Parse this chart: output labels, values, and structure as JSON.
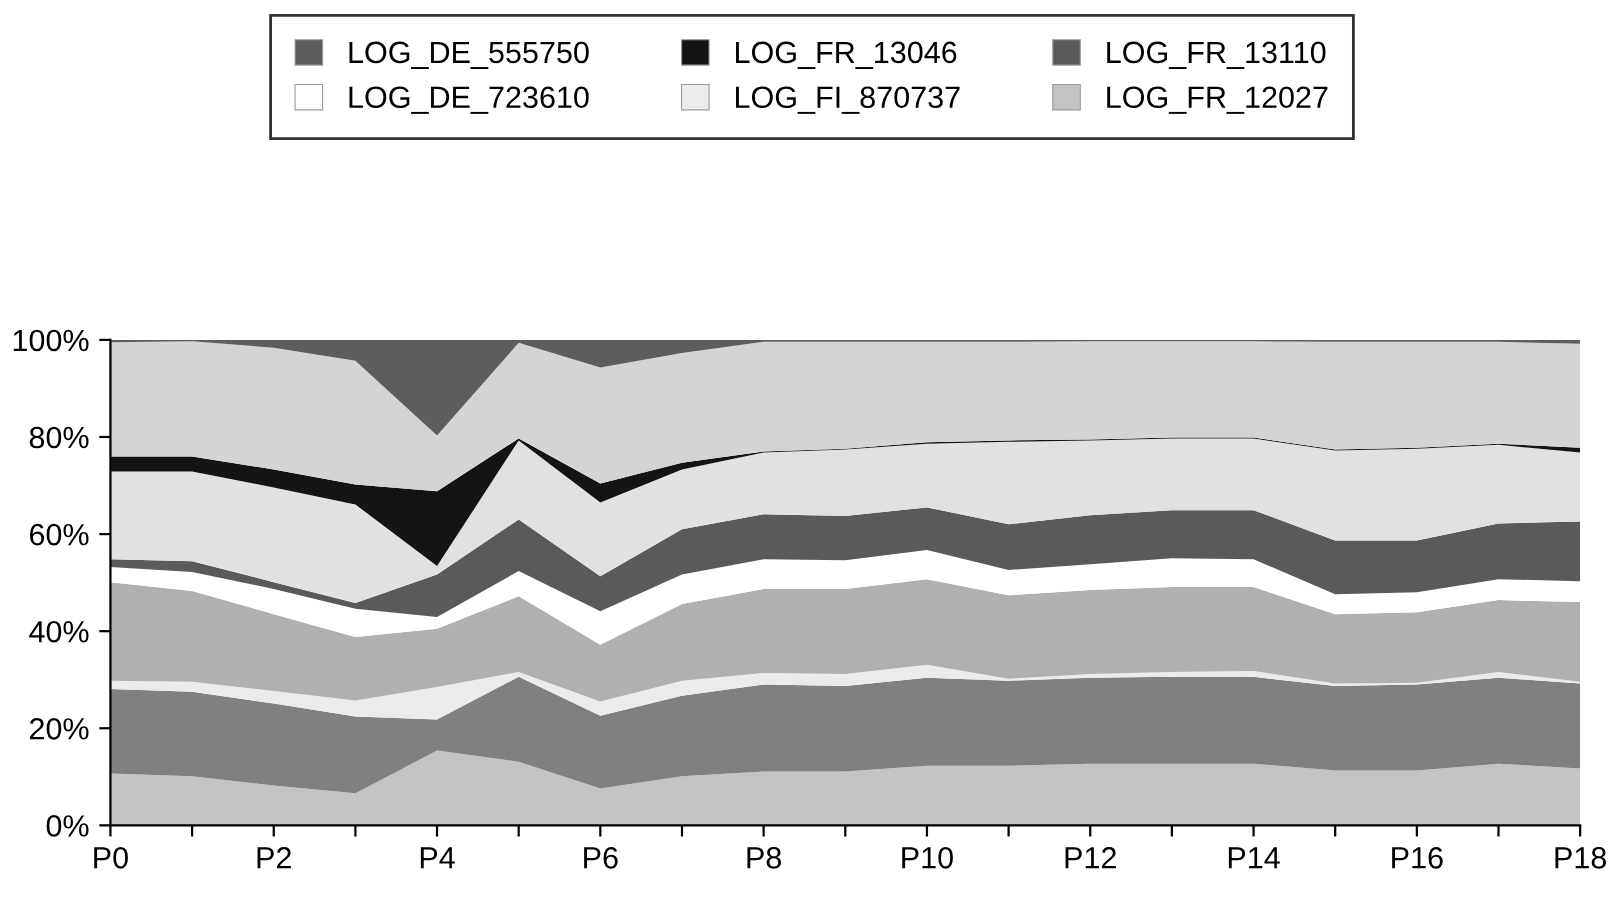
{
  "chart_data": {
    "type": "area",
    "stacked": true,
    "categories": [
      "P0",
      null,
      "P2",
      null,
      "P4",
      null,
      "P6",
      null,
      "P8",
      null,
      "P10",
      null,
      "P12",
      null,
      "P14",
      null,
      "P16",
      null,
      "P18"
    ],
    "ylim": [
      0,
      100
    ],
    "yticks": [
      {
        "value": 0,
        "label": "0%"
      },
      {
        "value": 20,
        "label": "20%"
      },
      {
        "value": 40,
        "label": "40%"
      },
      {
        "value": 60,
        "label": "60%"
      },
      {
        "value": 80,
        "label": "80%"
      },
      {
        "value": 100,
        "label": "100%"
      }
    ],
    "grid": false,
    "legend": "top",
    "series": [
      {
        "name": "LOG_FR_12027",
        "color": "#c2c3c3",
        "values": [
          10.7,
          10.1,
          8.2,
          6.6,
          15.4,
          13.1,
          7.6,
          10.1,
          11.1,
          11.1,
          12.3,
          12.3,
          12.7,
          12.7,
          12.7,
          11.3,
          11.3,
          12.7,
          11.7
        ]
      },
      {
        "color": "#808080",
        "values": [
          17.4,
          17.4,
          16.9,
          15.8,
          6.4,
          17.5,
          15.0,
          16.6,
          17.9,
          17.6,
          18.1,
          17.5,
          17.7,
          17.9,
          17.9,
          17.4,
          17.7,
          17.7,
          17.5
        ]
      },
      {
        "name": "LOG_FI_870737",
        "color": "#ebebeb",
        "values": [
          1.7,
          2.1,
          2.6,
          3.3,
          6.7,
          1.0,
          2.9,
          3.1,
          2.4,
          2.5,
          2.7,
          0.4,
          0.8,
          1.0,
          1.2,
          0.5,
          0.4,
          1.2,
          0.4
        ]
      },
      {
        "color": "#b0b0b0",
        "values": [
          20.3,
          18.7,
          15.8,
          13.1,
          12.0,
          15.6,
          11.7,
          15.8,
          17.3,
          17.5,
          17.6,
          17.2,
          17.3,
          17.5,
          17.3,
          14.3,
          14.5,
          14.8,
          16.4
        ]
      },
      {
        "name": "LOG_DE_723610",
        "color": "#ffffff",
        "values": [
          3.1,
          3.9,
          5.2,
          5.8,
          2.4,
          5.2,
          6.9,
          6.1,
          6.1,
          5.9,
          6.0,
          5.2,
          5.3,
          5.9,
          5.7,
          4.1,
          4.1,
          4.3,
          4.3
        ]
      },
      {
        "name": "LOG_FR_13110",
        "color": "#5a5a5a",
        "values": [
          1.6,
          2.2,
          1.4,
          1.2,
          8.8,
          10.6,
          7.2,
          9.3,
          9.3,
          9.1,
          8.8,
          9.4,
          10.1,
          9.9,
          10.1,
          11.1,
          10.7,
          11.5,
          12.3
        ]
      },
      {
        "color": "#e1e1e1",
        "values": [
          18.1,
          18.5,
          19.5,
          20.3,
          1.7,
          16.3,
          15.2,
          12.3,
          12.7,
          13.7,
          13.1,
          17.0,
          15.4,
          14.8,
          14.8,
          18.5,
          18.9,
          16.2,
          14.2
        ]
      },
      {
        "name": "LOG_FR_13046",
        "color": "#141414",
        "values": [
          3.1,
          3.1,
          3.7,
          4.1,
          15.4,
          0.4,
          3.9,
          1.4,
          0.2,
          0.2,
          0.3,
          0.3,
          0.2,
          0.2,
          0.2,
          0.2,
          0.2,
          0.2,
          1.0
        ]
      },
      {
        "color": "#d3d4d4",
        "values": [
          23.5,
          23.7,
          25.1,
          25.5,
          11.5,
          19.7,
          23.9,
          22.6,
          22.6,
          22.0,
          20.7,
          20.3,
          20.2,
          19.8,
          19.8,
          22.2,
          21.8,
          21.0,
          21.4
        ]
      },
      {
        "name": "LOG_DE_555750",
        "color": "#5d5d5d",
        "values": [
          0.5,
          0.3,
          1.6,
          4.3,
          19.7,
          0.6,
          5.7,
          2.7,
          0.4,
          0.4,
          0.4,
          0.4,
          0.3,
          0.3,
          0.3,
          0.4,
          0.4,
          0.4,
          0.8
        ]
      }
    ]
  }
}
